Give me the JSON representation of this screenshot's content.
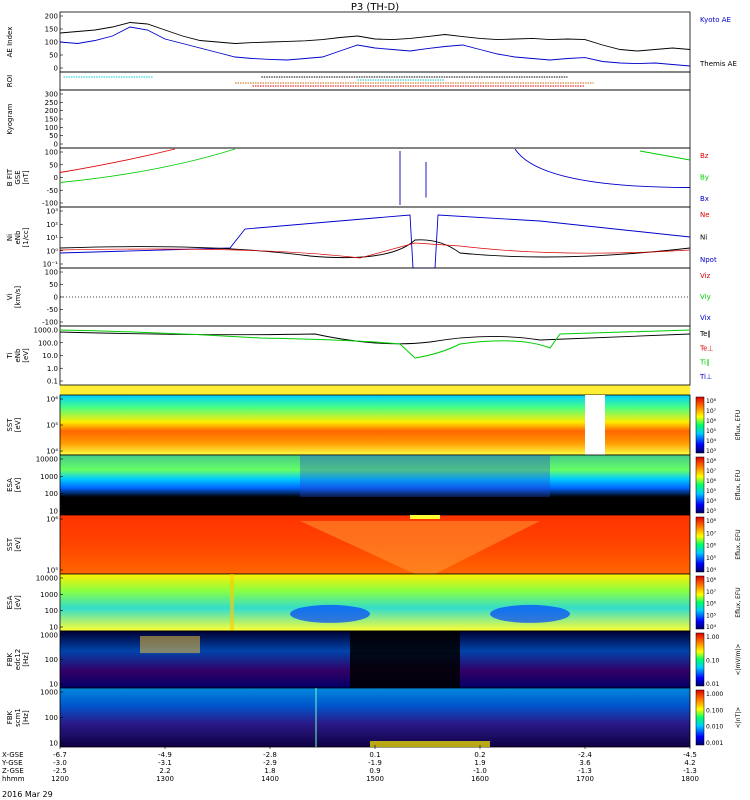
{
  "title": "P3 (TH-D)",
  "date_label": "2016 Mar 29",
  "colors": {
    "black": "#000000",
    "blue": "#0000cc",
    "red": "#dd0000",
    "green": "#00cc00",
    "cyan": "#00cccc",
    "orange": "#cc6600"
  },
  "chart_data": [
    {
      "type": "line",
      "id": "ae",
      "ylabel": "AE Index",
      "yticks": [
        "200",
        "150",
        "100",
        "50",
        "0"
      ],
      "ylim": [
        0,
        200
      ],
      "legend": [
        {
          "label": "Kyoto AE",
          "color": "blue"
        },
        {
          "label": "Themis AE",
          "color": "black"
        }
      ],
      "x": [
        1200,
        1210,
        1220,
        1230,
        1240,
        1250,
        1300,
        1310,
        1320,
        1330,
        1340,
        1350,
        1400,
        1410,
        1420,
        1430,
        1440,
        1450,
        1500,
        1510,
        1520,
        1530,
        1540,
        1550,
        1600,
        1610,
        1620,
        1630,
        1640,
        1650,
        1700,
        1710,
        1720,
        1730,
        1740,
        1750,
        1800
      ],
      "series": [
        {
          "color": "blue",
          "values": [
            100,
            95,
            105,
            120,
            150,
            140,
            110,
            95,
            80,
            65,
            50,
            45,
            42,
            40,
            45,
            50,
            70,
            90,
            80,
            75,
            70,
            78,
            85,
            90,
            75,
            60,
            50,
            45,
            40,
            45,
            48,
            35,
            30,
            28,
            30,
            25,
            20
          ]
        },
        {
          "color": "black",
          "values": [
            130,
            135,
            140,
            150,
            165,
            160,
            140,
            120,
            105,
            100,
            95,
            98,
            100,
            102,
            104,
            108,
            115,
            120,
            110,
            108,
            112,
            118,
            125,
            118,
            112,
            108,
            110,
            112,
            108,
            110,
            108,
            90,
            75,
            70,
            75,
            80,
            75
          ]
        }
      ]
    },
    {
      "type": "timeline",
      "id": "roi",
      "ylabel": "ROI",
      "bands": [
        {
          "x0": 1202,
          "x1": 1253,
          "color": "cyan"
        },
        {
          "x0": 1450,
          "x1": 1540,
          "color": "cyan"
        },
        {
          "x0": 1340,
          "x1": 1705,
          "color": "orange"
        },
        {
          "x0": 1350,
          "x1": 1700,
          "color": "red"
        },
        {
          "x0": 1355,
          "x1": 1650,
          "color": "black"
        }
      ]
    },
    {
      "type": "line",
      "id": "kyogram",
      "ylabel": "Kyogram",
      "yticks": [
        "300",
        "250",
        "200",
        "150",
        "100",
        "50",
        "0"
      ],
      "ylim": [
        0,
        300
      ]
    },
    {
      "type": "line",
      "id": "bfield",
      "ylabel": "B FIT",
      "ylabel2": "GSE",
      "ylabel3": "[nT]",
      "yticks": [
        "100",
        "50",
        "0",
        "-50",
        "-100"
      ],
      "ylim": [
        -100,
        100
      ],
      "legend": [
        {
          "label": "Bz",
          "color": "red"
        },
        {
          "label": "By",
          "color": "green"
        },
        {
          "label": "Bx",
          "color": "blue"
        }
      ]
    },
    {
      "type": "line",
      "id": "ni",
      "ylabel": "Ni",
      "ylabel2": "eNb",
      "ylabel3": "[1/cc]",
      "yticks": [
        "10³",
        "10²",
        "10¹",
        "10⁰",
        "10⁻¹"
      ],
      "legend": [
        {
          "label": "Ne",
          "color": "red"
        },
        {
          "label": "Ni",
          "color": "black"
        },
        {
          "label": "Npot",
          "color": "blue"
        }
      ]
    },
    {
      "type": "line",
      "id": "vi",
      "ylabel": "Vi",
      "ylabel3": "[km/s]",
      "yticks": [
        "100",
        "50",
        "0",
        "-50",
        "-100"
      ],
      "legend": [
        {
          "label": "Viz",
          "color": "red"
        },
        {
          "label": "Viy",
          "color": "green"
        },
        {
          "label": "Vix",
          "color": "blue"
        }
      ]
    },
    {
      "type": "line",
      "id": "temp",
      "ylabel": "Ti",
      "ylabel2": "eNb",
      "ylabel3": "[eV]",
      "yticks": [
        "1000.0",
        "100.0",
        "10.0",
        "1.0",
        "0.1"
      ],
      "legend": [
        {
          "label": "Te∥",
          "color": "black"
        },
        {
          "label": "Te⊥",
          "color": "red"
        },
        {
          "label": "Ti∥",
          "color": "green"
        },
        {
          "label": "Ti⊥",
          "color": "blue"
        }
      ]
    },
    {
      "type": "heatmap",
      "id": "sst-ion",
      "ylabel": "SST",
      "ylabel3": "[eV]",
      "yticks": [
        "10⁶",
        "10⁵",
        "10⁴"
      ],
      "cbar_ticks": [
        "10⁸",
        "10⁷",
        "10⁶",
        "10⁵",
        "10⁴",
        "10³"
      ],
      "cbar_label": "Eflux, EFU"
    },
    {
      "type": "heatmap",
      "id": "esa-ion",
      "ylabel": "ESA",
      "ylabel3": "[eV]",
      "yticks": [
        "10000",
        "1000",
        "100",
        "10"
      ],
      "cbar_ticks": [
        "10⁸",
        "10⁷",
        "10⁶",
        "10⁵",
        "10⁴",
        "10³"
      ],
      "cbar_label": "Eflux, EFU"
    },
    {
      "type": "heatmap",
      "id": "sst-elec",
      "ylabel": "SST",
      "ylabel3": "[eV]",
      "yticks": [
        "10⁶",
        "10⁵"
      ],
      "cbar_ticks": [
        "10⁸",
        "10⁷",
        "10⁶",
        "10⁵",
        "10⁴"
      ],
      "cbar_label": "Eflux, EFU"
    },
    {
      "type": "heatmap",
      "id": "esa-elec",
      "ylabel": "ESA",
      "ylabel3": "[eV]",
      "yticks": [
        "10000",
        "1000",
        "100",
        "10"
      ],
      "cbar_ticks": [
        "10⁸",
        "10⁷",
        "10⁶",
        "10⁵",
        "10⁴"
      ],
      "cbar_label": "Eflux, EFU"
    },
    {
      "type": "heatmap",
      "id": "fbk-e",
      "ylabel": "FBK",
      "ylabel2": "edc12",
      "ylabel3": "[Hz]",
      "yticks": [
        "1000",
        "100",
        "10"
      ],
      "cbar_ticks": [
        "1.00",
        "0.10",
        "0.01"
      ],
      "cbar_label": "<|mV/m|>"
    },
    {
      "type": "heatmap",
      "id": "fbk-b",
      "ylabel": "FBK",
      "ylabel2": "scm1",
      "ylabel3": "[Hz]",
      "yticks": [
        "1000",
        "100",
        "10"
      ],
      "cbar_ticks": [
        "1.000",
        "0.100",
        "0.010",
        "0.001"
      ],
      "cbar_label": "<|nT|>"
    }
  ],
  "xaxis": {
    "rows": [
      {
        "label": "X-GSE",
        "values": [
          "-6.7",
          "-4.9",
          "-2.8",
          "0.1",
          "0.2",
          "-2.4",
          "-4.5"
        ]
      },
      {
        "label": "Y-GSE",
        "values": [
          "-3.0",
          "-3.1",
          "-2.9",
          "-1.9",
          "1.9",
          "3.6",
          "4.2"
        ]
      },
      {
        "label": "Z-GSE",
        "values": [
          "-2.5",
          "2.2",
          "1.8",
          "0.9",
          "-1.0",
          "-1.3",
          "-1.3"
        ]
      },
      {
        "label": "hhmm",
        "values": [
          "1200",
          "1300",
          "1400",
          "1500",
          "1600",
          "1700",
          "1800"
        ]
      }
    ]
  }
}
